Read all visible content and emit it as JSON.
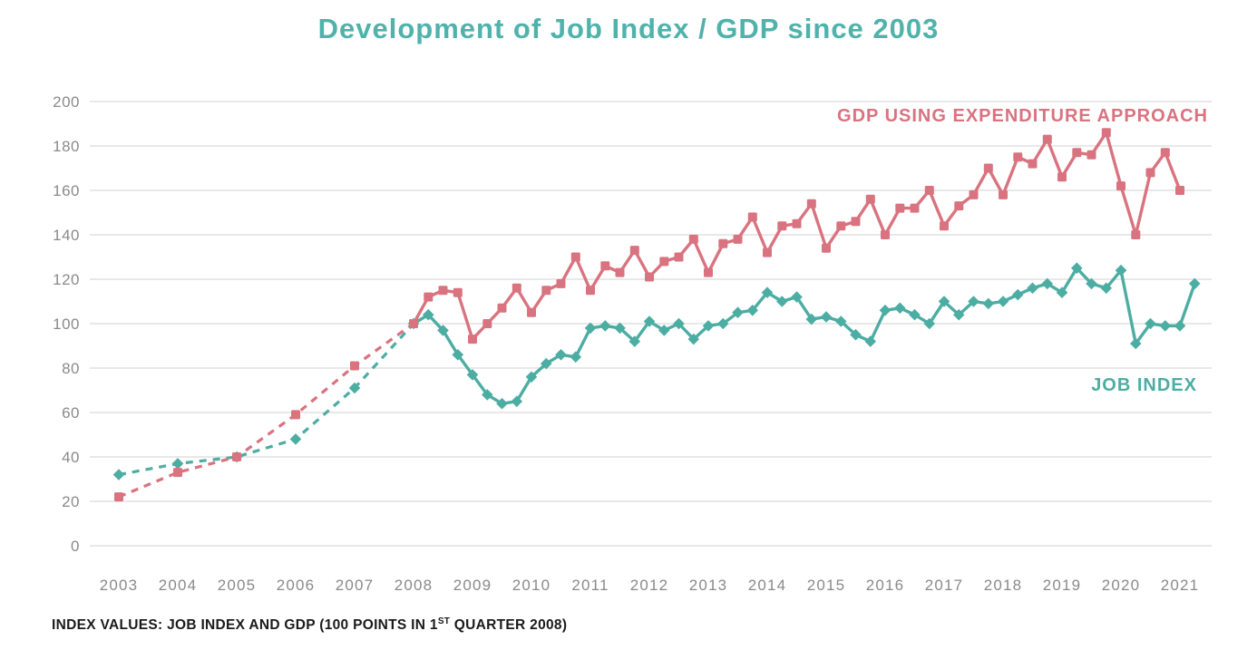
{
  "chart_data": {
    "type": "line",
    "title": "Development of Job Index / GDP since 2003",
    "caption_prefix": "INDEX VALUES: JOB INDEX AND GDP (100 POINTS IN 1",
    "caption_sup": "ST",
    "caption_suffix": " QUARTER 2008)",
    "xlabel": "",
    "ylabel": "",
    "ylim": [
      0,
      200
    ],
    "grid": "horizontal",
    "legend_position": "inline-labels",
    "x_tick_labels": [
      "2003",
      "2004",
      "2005",
      "2006",
      "2007",
      "2008",
      "2009",
      "2010",
      "2011",
      "2012",
      "2013",
      "2014",
      "2015",
      "2016",
      "2017",
      "2018",
      "2019",
      "2020",
      "2021"
    ],
    "y_ticks": [
      0,
      20,
      40,
      60,
      80,
      100,
      120,
      140,
      160,
      180,
      200
    ],
    "colors": {
      "gdp": "#d9737f",
      "job": "#4cada3",
      "title": "#4fb2ab",
      "axis_text": "#8a8a8a",
      "grid": "#dadada",
      "caption": "#1a1a1a"
    },
    "notes": "Annual points 2003-2007 (dashed segment), quarterly points from 2008 Q1 onward (solid). Both series indexed to 100 in Q1 2008.",
    "series": [
      {
        "name": "JOB INDEX",
        "marker": "diamond",
        "color": "#4cada3",
        "dash_until_x": 2008.0,
        "points": [
          [
            2003,
            32
          ],
          [
            2004,
            37
          ],
          [
            2005,
            40
          ],
          [
            2006,
            48
          ],
          [
            2007,
            71
          ],
          [
            2008.0,
            100
          ],
          [
            2008.25,
            104
          ],
          [
            2008.5,
            97
          ],
          [
            2008.75,
            86
          ],
          [
            2009.0,
            77
          ],
          [
            2009.25,
            68
          ],
          [
            2009.5,
            64
          ],
          [
            2009.75,
            65
          ],
          [
            2010.0,
            76
          ],
          [
            2010.25,
            82
          ],
          [
            2010.5,
            86
          ],
          [
            2010.75,
            85
          ],
          [
            2011.0,
            98
          ],
          [
            2011.25,
            99
          ],
          [
            2011.5,
            98
          ],
          [
            2011.75,
            92
          ],
          [
            2012.0,
            101
          ],
          [
            2012.25,
            97
          ],
          [
            2012.5,
            100
          ],
          [
            2012.75,
            93
          ],
          [
            2013.0,
            99
          ],
          [
            2013.25,
            100
          ],
          [
            2013.5,
            105
          ],
          [
            2013.75,
            106
          ],
          [
            2014.0,
            114
          ],
          [
            2014.25,
            110
          ],
          [
            2014.5,
            112
          ],
          [
            2014.75,
            102
          ],
          [
            2015.0,
            103
          ],
          [
            2015.25,
            101
          ],
          [
            2015.5,
            95
          ],
          [
            2015.75,
            92
          ],
          [
            2016.0,
            106
          ],
          [
            2016.25,
            107
          ],
          [
            2016.5,
            104
          ],
          [
            2016.75,
            100
          ],
          [
            2017.0,
            110
          ],
          [
            2017.25,
            104
          ],
          [
            2017.5,
            110
          ],
          [
            2017.75,
            109
          ],
          [
            2018.0,
            110
          ],
          [
            2018.25,
            113
          ],
          [
            2018.5,
            116
          ],
          [
            2018.75,
            118
          ],
          [
            2019.0,
            114
          ],
          [
            2019.25,
            125
          ],
          [
            2019.5,
            118
          ],
          [
            2019.75,
            116
          ],
          [
            2020.0,
            124
          ],
          [
            2020.25,
            91
          ],
          [
            2020.5,
            100
          ],
          [
            2020.75,
            99
          ],
          [
            2021.0,
            99
          ],
          [
            2021.25,
            118
          ]
        ]
      },
      {
        "name": "GDP USING EXPENDITURE APPROACH",
        "marker": "square",
        "color": "#d9737f",
        "dash_until_x": 2008.0,
        "points": [
          [
            2003,
            22
          ],
          [
            2004,
            33
          ],
          [
            2005,
            40
          ],
          [
            2006,
            59
          ],
          [
            2007,
            81
          ],
          [
            2008.0,
            100
          ],
          [
            2008.25,
            112
          ],
          [
            2008.5,
            115
          ],
          [
            2008.75,
            114
          ],
          [
            2009.0,
            93
          ],
          [
            2009.25,
            100
          ],
          [
            2009.5,
            107
          ],
          [
            2009.75,
            116
          ],
          [
            2010.0,
            105
          ],
          [
            2010.25,
            115
          ],
          [
            2010.5,
            118
          ],
          [
            2010.75,
            130
          ],
          [
            2011.0,
            115
          ],
          [
            2011.25,
            126
          ],
          [
            2011.5,
            123
          ],
          [
            2011.75,
            133
          ],
          [
            2012.0,
            121
          ],
          [
            2012.25,
            128
          ],
          [
            2012.5,
            130
          ],
          [
            2012.75,
            138
          ],
          [
            2013.0,
            123
          ],
          [
            2013.25,
            136
          ],
          [
            2013.5,
            138
          ],
          [
            2013.75,
            148
          ],
          [
            2014.0,
            132
          ],
          [
            2014.25,
            144
          ],
          [
            2014.5,
            145
          ],
          [
            2014.75,
            154
          ],
          [
            2015.0,
            134
          ],
          [
            2015.25,
            144
          ],
          [
            2015.5,
            146
          ],
          [
            2015.75,
            156
          ],
          [
            2016.0,
            140
          ],
          [
            2016.25,
            152
          ],
          [
            2016.5,
            152
          ],
          [
            2016.75,
            160
          ],
          [
            2017.0,
            144
          ],
          [
            2017.25,
            153
          ],
          [
            2017.5,
            158
          ],
          [
            2017.75,
            170
          ],
          [
            2018.0,
            158
          ],
          [
            2018.25,
            175
          ],
          [
            2018.5,
            172
          ],
          [
            2018.75,
            183
          ],
          [
            2019.0,
            166
          ],
          [
            2019.25,
            177
          ],
          [
            2019.5,
            176
          ],
          [
            2019.75,
            186
          ],
          [
            2020.0,
            162
          ],
          [
            2020.25,
            140
          ],
          [
            2020.5,
            168
          ],
          [
            2020.75,
            177
          ],
          [
            2021.0,
            160
          ]
        ]
      }
    ]
  }
}
